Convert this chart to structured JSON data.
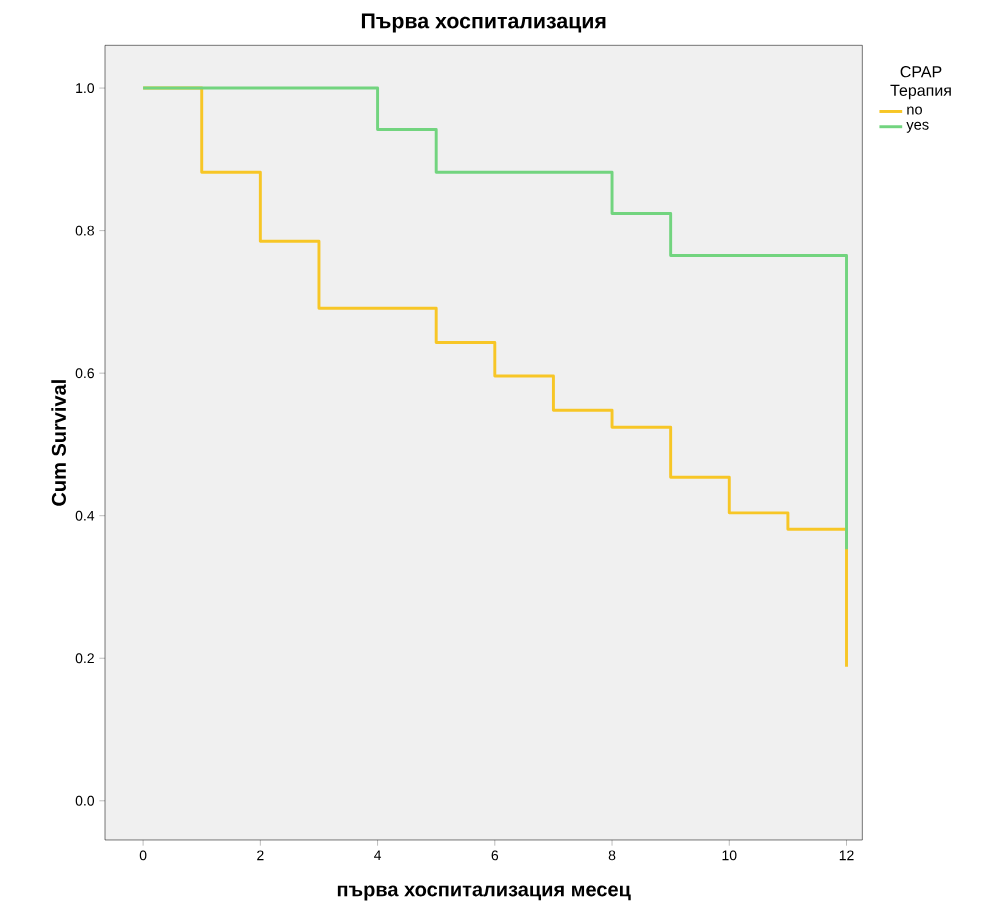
{
  "chart_data": {
    "type": "step",
    "title": "Първа хоспитализация",
    "xlabel": "първа хоспитализация месец",
    "ylabel": "Cum Survival",
    "legend_title": "CPAP Терапия",
    "series": [
      {
        "name": "no",
        "color": "#f7c626",
        "x": [
          0,
          1,
          2,
          3,
          5,
          6,
          7,
          8,
          9,
          10,
          11,
          12
        ],
        "values": [
          1,
          0.882,
          0.785,
          0.691,
          0.643,
          0.596,
          0.548,
          0.524,
          0.454,
          0.404,
          0.381,
          0.188
        ]
      },
      {
        "name": "yes",
        "color": "#72d47f",
        "x": [
          0,
          4,
          5,
          8,
          9,
          12
        ],
        "values": [
          1,
          0.942,
          0.882,
          0.824,
          0.765,
          0.353
        ]
      }
    ],
    "xlim": [
      -0.65,
      12.27
    ],
    "ylim": [
      -0.055,
      1.06
    ],
    "xticks": [
      0,
      2,
      4,
      6,
      8,
      10,
      12
    ],
    "yticks": [
      {
        "value": 0,
        "label": "0.0"
      },
      {
        "value": 0.2,
        "label": "0.2"
      },
      {
        "value": 0.4,
        "label": "0.4"
      },
      {
        "value": 0.6,
        "label": "0.6"
      },
      {
        "value": 0.8,
        "label": "0.8"
      },
      {
        "value": 1,
        "label": "1.0"
      }
    ],
    "grid": false,
    "legend": "top right",
    "line_style": "solid",
    "marker": "none"
  }
}
